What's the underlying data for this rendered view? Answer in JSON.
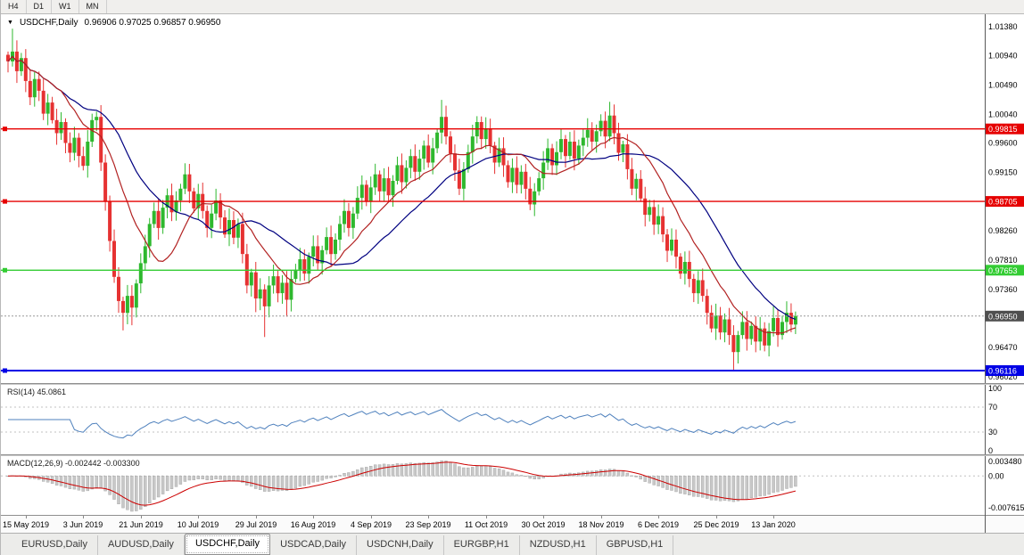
{
  "toolbar": {
    "timeframes": [
      "H4",
      "D1",
      "W1",
      "MN"
    ]
  },
  "main_chart": {
    "dropdown_icon": "▼",
    "symbol_title": "USDCHF,Daily",
    "ohlc": "0.96906 0.97025 0.96857 0.96950",
    "price_axis_labels": [
      "1.01380",
      "1.00940",
      "1.00490",
      "1.00040",
      "0.99600",
      "0.99150",
      "0.98700",
      "0.98260",
      "0.97810",
      "0.97360",
      "0.96920",
      "0.96470",
      "0.96020"
    ],
    "hlines": [
      {
        "price": 0.99815,
        "label": "0.99815",
        "color": "#e60000",
        "width": 1.4
      },
      {
        "price": 0.98705,
        "label": "0.98705",
        "color": "#e60000",
        "width": 1.4
      },
      {
        "price": 0.97653,
        "label": "0.97653",
        "color": "#33cc33",
        "width": 1.4
      },
      {
        "price": 0.96116,
        "label": "0.96116",
        "color": "#0000e6",
        "width": 2
      }
    ],
    "current_price": "0.96950"
  },
  "colors": {
    "bull": "#2eb82e",
    "bear": "#e63232",
    "ma_fast": "#b22222",
    "ma_slow": "#000080",
    "rsi_line": "#4f81bd",
    "macd_signal": "#cc0000",
    "macd_hist_fill": "#c8c8c8",
    "macd_hist_stroke": "#a0a0a0",
    "price_tag_bg": "#4f4f4f",
    "level_dash": "#c0c0c0"
  },
  "chart_data": {
    "type": "candlestick",
    "symbol": "USDCHF",
    "timeframe": "Daily",
    "title": "USDCHF,Daily",
    "ylim": [
      0.9602,
      1.0138
    ],
    "x_labels": [
      "15 May 2019",
      "3 Jun 2019",
      "21 Jun 2019",
      "10 Jul 2019",
      "29 Jul 2019",
      "16 Aug 2019",
      "4 Sep 2019",
      "23 Sep 2019",
      "11 Oct 2019",
      "30 Oct 2019",
      "18 Nov 2019",
      "6 Dec 2019",
      "25 Dec 2019",
      "13 Jan 2020"
    ],
    "first_open": 1.0095,
    "closes": [
      1.0085,
      1.01,
      1.007,
      1.009,
      1.0055,
      1.003,
      1.0058,
      1.004,
      1.0005,
      1.0022,
      0.9995,
      0.9975,
      0.9992,
      0.996,
      0.9945,
      0.9968,
      0.994,
      0.9925,
      0.9962,
      0.9995,
      1.0,
      0.993,
      0.987,
      0.981,
      0.9755,
      0.9718,
      0.97,
      0.9726,
      0.9708,
      0.9745,
      0.9776,
      0.9802,
      0.9836,
      0.9856,
      0.983,
      0.9861,
      0.988,
      0.9854,
      0.9872,
      0.989,
      0.9912,
      0.9886,
      0.986,
      0.9882,
      0.9856,
      0.983,
      0.9852,
      0.9872,
      0.9846,
      0.982,
      0.9842,
      0.9815,
      0.9836,
      0.979,
      0.9742,
      0.9762,
      0.9722,
      0.9736,
      0.971,
      0.9742,
      0.9756,
      0.973,
      0.9746,
      0.972,
      0.9752,
      0.9766,
      0.9782,
      0.976,
      0.9786,
      0.9802,
      0.9776,
      0.9796,
      0.9816,
      0.979,
      0.9812,
      0.9836,
      0.9856,
      0.983,
      0.9852,
      0.9876,
      0.9896,
      0.987,
      0.9892,
      0.9912,
      0.9886,
      0.9906,
      0.988,
      0.9902,
      0.9926,
      0.99,
      0.9922,
      0.994,
      0.9916,
      0.9936,
      0.9956,
      0.993,
      0.9952,
      0.9976,
      1.0,
      0.997,
      0.9944,
      0.9918,
      0.989,
      0.992,
      0.9946,
      0.997,
      0.9992,
      0.9966,
      0.9982,
      0.9956,
      0.993,
      0.9952,
      0.9926,
      0.99,
      0.9922,
      0.9896,
      0.9916,
      0.989,
      0.9866,
      0.9886,
      0.9906,
      0.993,
      0.9952,
      0.9926,
      0.9946,
      0.9966,
      0.994,
      0.9962,
      0.9936,
      0.9956,
      0.9968,
      0.998,
      0.9962,
      0.9978,
      0.9994,
      0.997,
      1.0002,
      0.9975,
      0.9945,
      0.9958,
      0.992,
      0.989,
      0.9905,
      0.9875,
      0.985,
      0.9862,
      0.9835,
      0.9848,
      0.982,
      0.9795,
      0.9812,
      0.9786,
      0.976,
      0.9778,
      0.9752,
      0.973,
      0.975,
      0.9726,
      0.97,
      0.9676,
      0.9696,
      0.967,
      0.969,
      0.9666,
      0.964,
      0.9666,
      0.9686,
      0.966,
      0.968,
      0.9656,
      0.9676,
      0.965,
      0.9672,
      0.9692,
      0.9666,
      0.9686,
      0.97,
      0.9682,
      0.9695
    ],
    "wick_overrides": {
      "1": {
        "h": 1.0135
      },
      "20": {
        "h": 1.0008
      },
      "26": {
        "l": 0.9673
      },
      "28": {
        "l": 0.9681
      },
      "56": {
        "l": 0.9701
      },
      "58": {
        "l": 0.9663
      },
      "63": {
        "l": 0.9694
      },
      "98": {
        "h": 1.0026
      },
      "106": {
        "h": 1.0001
      },
      "134": {
        "h": 1.0004
      },
      "136": {
        "h": 1.0023
      },
      "164": {
        "l": 0.9613
      },
      "171": {
        "l": 0.9641
      }
    }
  },
  "rsi_panel": {
    "label": "RSI(14) 45.0861",
    "axis_labels": [
      "100",
      "70",
      "30",
      "0"
    ]
  },
  "macd_panel": {
    "label": "MACD(12,26,9) -0.002442 -0.003300",
    "axis_labels": [
      "0.003480",
      "0.00",
      "-0.007615"
    ]
  },
  "tabs": [
    {
      "label": "EURUSD,Daily",
      "active": false
    },
    {
      "label": "AUDUSD,Daily",
      "active": false
    },
    {
      "label": "USDCHF,Daily",
      "active": true
    },
    {
      "label": "USDCAD,Daily",
      "active": false
    },
    {
      "label": "USDCNH,Daily",
      "active": false
    },
    {
      "label": "EURGBP,H1",
      "active": false
    },
    {
      "label": "NZDUSD,H1",
      "active": false
    },
    {
      "label": "GBPUSD,H1",
      "active": false
    }
  ]
}
